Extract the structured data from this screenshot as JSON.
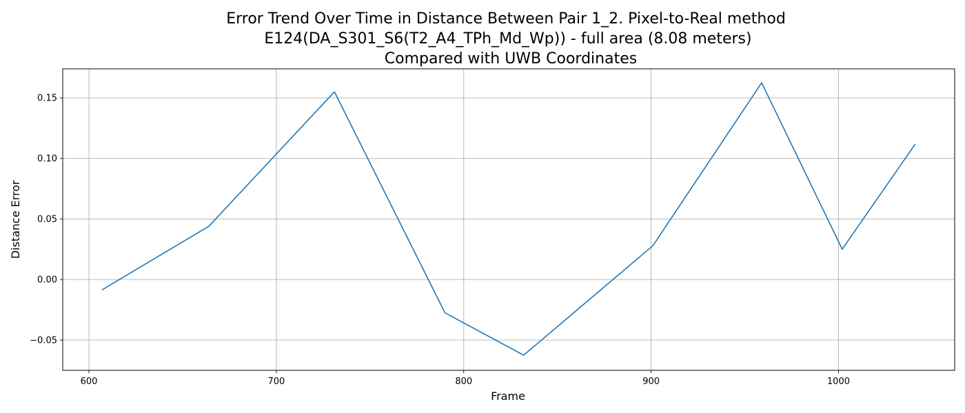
{
  "chart_data": {
    "type": "line",
    "title_lines": [
      "Error Trend Over Time in Distance Between Pair 1_2. Pixel-to-Real method",
      "E124(DA_S301_S6(T2_A4_TPh_Md_Wp)) - full area (8.08 meters)",
      "Compared with UWB Coordinates"
    ],
    "xlabel": "Frame",
    "ylabel": "Distance Error",
    "xlim": [
      586,
      1062
    ],
    "ylim": [
      -0.075,
      0.174
    ],
    "xticks": [
      600,
      700,
      800,
      900,
      1000
    ],
    "yticks": [
      -0.05,
      0.0,
      0.05,
      0.1,
      0.15
    ],
    "ytick_labels": [
      "−0.05",
      "0.00",
      "0.05",
      "0.10",
      "0.15"
    ],
    "grid": true,
    "series": [
      {
        "color": "#1f77b4",
        "x": [
          607,
          664,
          731,
          790,
          832,
          901,
          959,
          1002,
          1041
        ],
        "y": [
          -0.0085,
          0.044,
          0.155,
          -0.0275,
          -0.0625,
          0.028,
          0.1625,
          0.025,
          0.112
        ]
      }
    ]
  }
}
